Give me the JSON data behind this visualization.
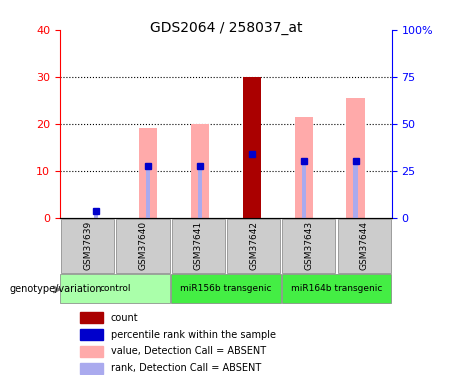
{
  "title": "GDS2064 / 258037_at",
  "samples": [
    "GSM37639",
    "GSM37640",
    "GSM37641",
    "GSM37642",
    "GSM37643",
    "GSM37644"
  ],
  "pink_bar_heights": [
    0,
    19,
    20,
    30,
    21.5,
    25.5
  ],
  "blue_rank_heights": [
    1.3,
    11,
    11,
    13.5,
    12,
    12
  ],
  "red_count_heights": [
    0,
    0,
    0,
    30,
    0,
    0
  ],
  "ylim_left": [
    0,
    40
  ],
  "ylim_right": [
    0,
    100
  ],
  "yticks_left": [
    0,
    10,
    20,
    30,
    40
  ],
  "yticks_right": [
    0,
    25,
    50,
    75,
    100
  ],
  "ytick_labels_right": [
    "0",
    "25",
    "50",
    "75",
    "100%"
  ],
  "pink_color": "#ffaaaa",
  "light_blue_color": "#aaaaee",
  "dark_red_color": "#aa0000",
  "blue_color": "#0000cc",
  "legend_items": [
    {
      "color": "#aa0000",
      "label": "count"
    },
    {
      "color": "#0000cc",
      "label": "percentile rank within the sample"
    },
    {
      "color": "#ffaaaa",
      "label": "value, Detection Call = ABSENT"
    },
    {
      "color": "#aaaaee",
      "label": "rank, Detection Call = ABSENT"
    }
  ],
  "groups_info": [
    {
      "start": 0,
      "end": 1,
      "label": "control",
      "color": "#aaffaa"
    },
    {
      "start": 2,
      "end": 3,
      "label": "miR156b transgenic",
      "color": "#44ee44"
    },
    {
      "start": 4,
      "end": 5,
      "label": "miR164b transgenic",
      "color": "#44ee44"
    }
  ]
}
